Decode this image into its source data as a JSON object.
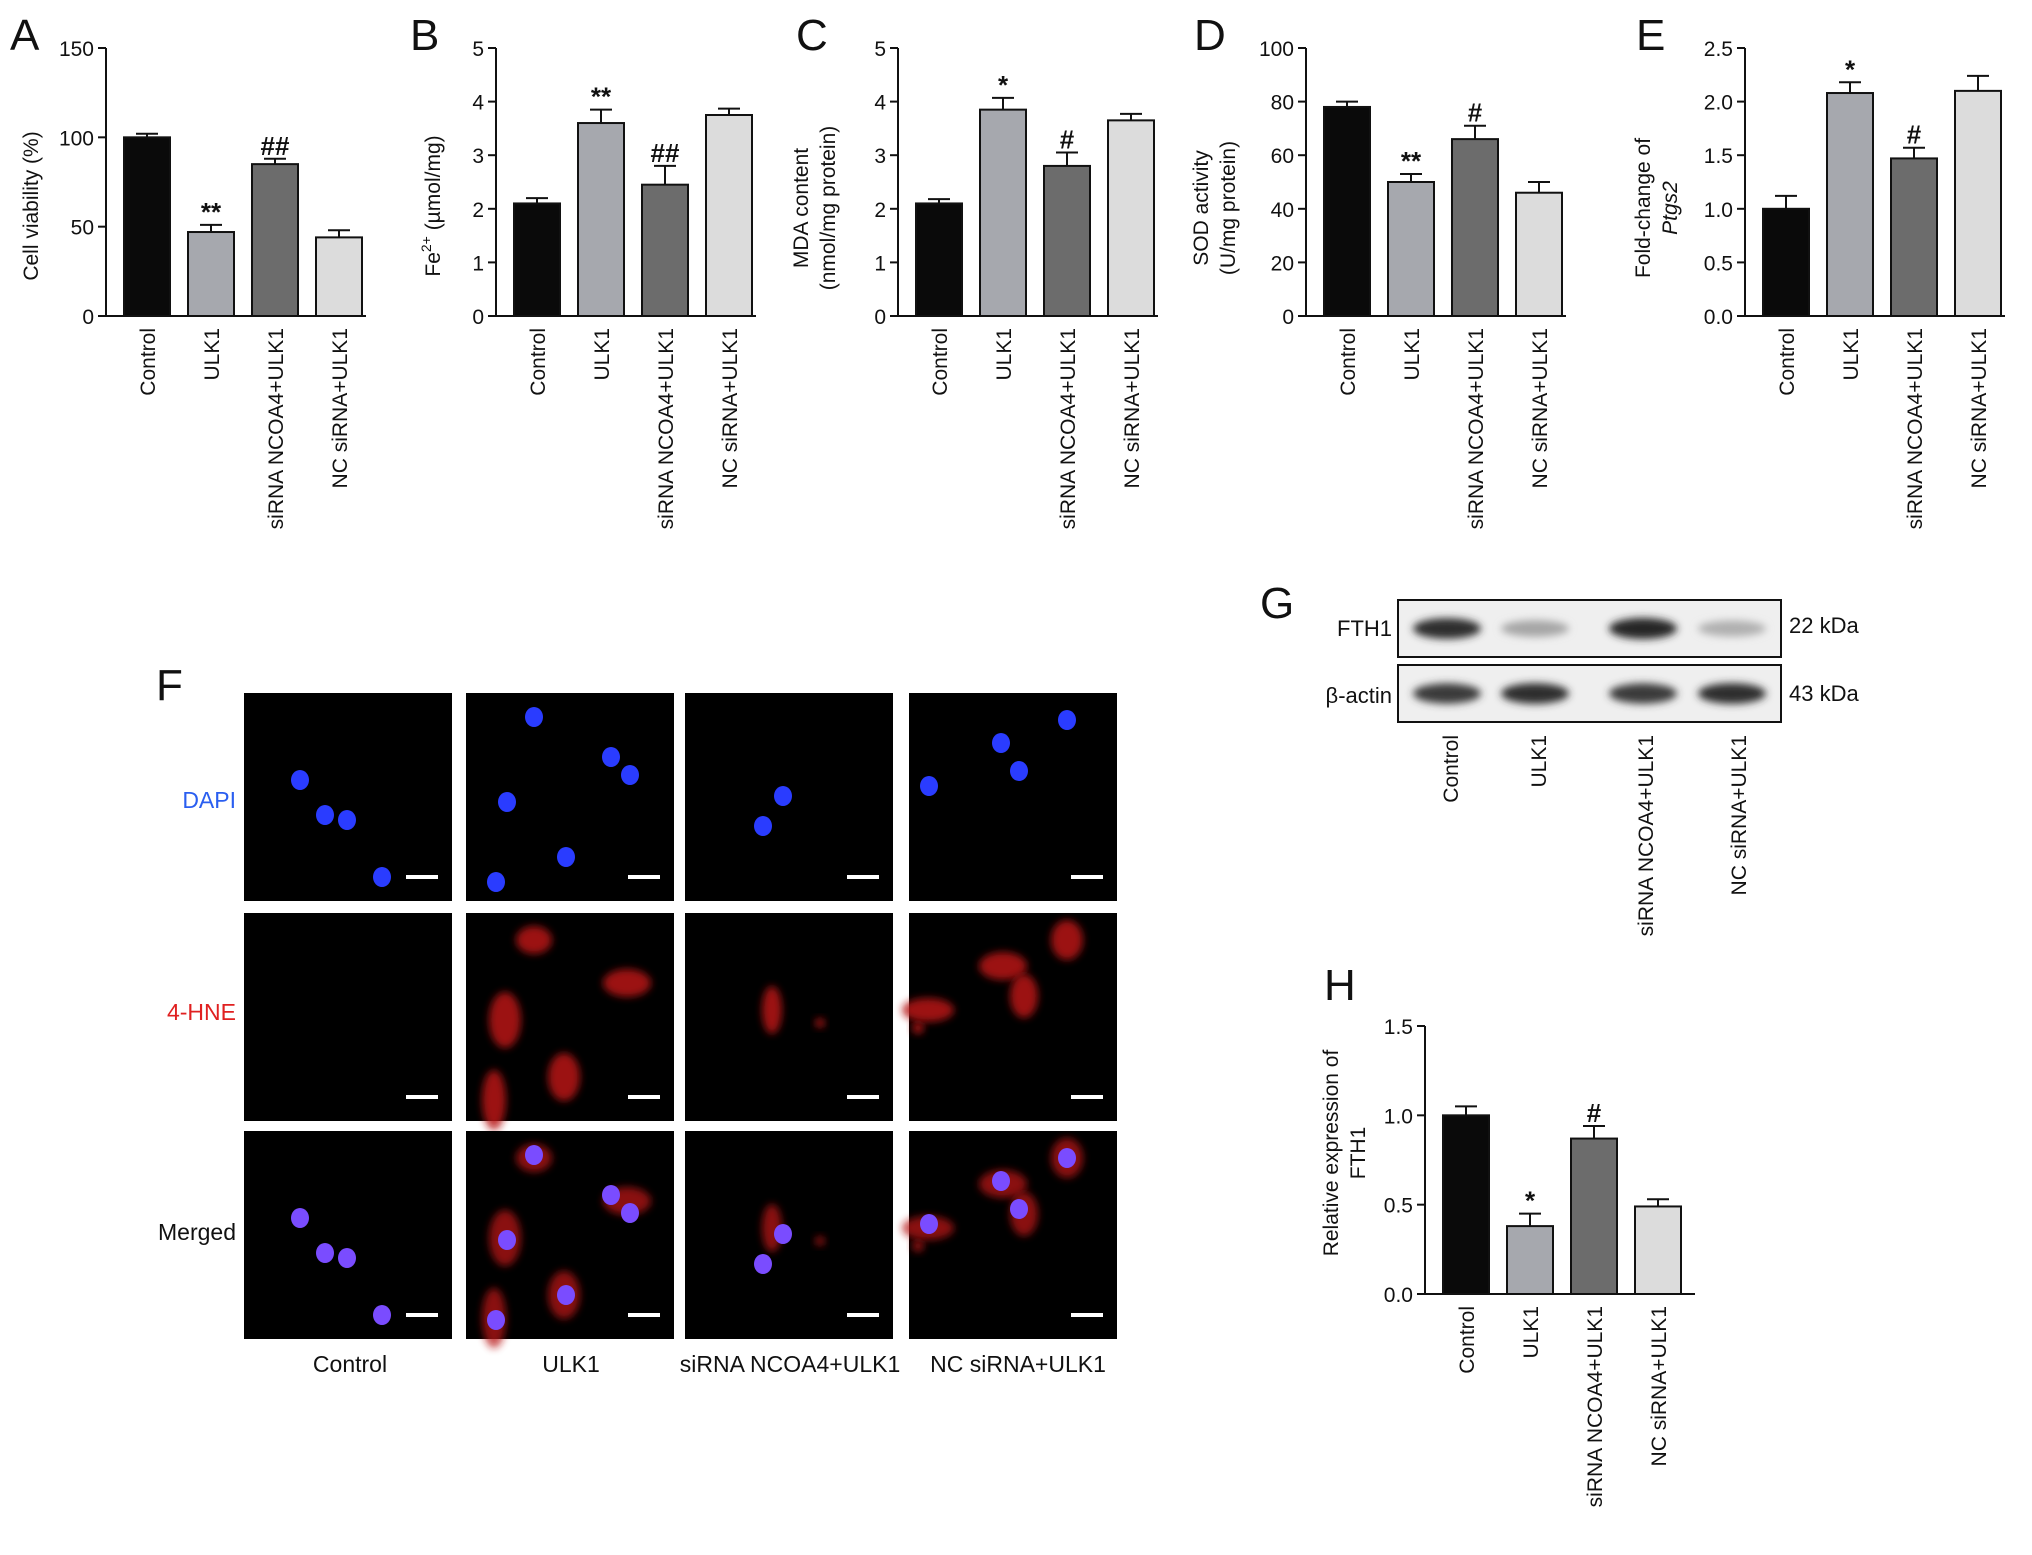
{
  "panel_labels": {
    "A": "A",
    "B": "B",
    "C": "C",
    "D": "D",
    "E": "E",
    "F": "F",
    "G": "G",
    "H": "H"
  },
  "bar_colors": [
    "#0a0a0a",
    "#a6a8ae",
    "#6c6c6c",
    "#dcdcdc"
  ],
  "chart_data": [
    {
      "panel": "A",
      "type": "bar",
      "categories": [
        "Control",
        "ULK1",
        "siRNA NCOA4+ULK1",
        "NC siRNA+ULK1"
      ],
      "values": [
        100,
        47,
        85,
        44
      ],
      "errors": [
        2,
        4,
        3,
        4
      ],
      "significance": [
        "",
        "**",
        "##",
        ""
      ],
      "ylabel": "Cell viability (%)",
      "ylim": [
        0,
        150
      ],
      "yticks": [
        0,
        50,
        100,
        150
      ],
      "ytick_labels": [
        "0",
        "50",
        "100",
        "150"
      ],
      "xlabel": "",
      "title": ""
    },
    {
      "panel": "B",
      "type": "bar",
      "categories": [
        "Control",
        "ULK1",
        "siRNA NCOA4+ULK1",
        "NC siRNA+ULK1"
      ],
      "values": [
        2.1,
        3.6,
        2.45,
        3.75
      ],
      "errors": [
        0.1,
        0.25,
        0.35,
        0.12
      ],
      "significance": [
        "",
        "**",
        "##",
        ""
      ],
      "ylabel": "Fe2+ (µmol/mg)",
      "ylim": [
        0,
        5
      ],
      "yticks": [
        0,
        1,
        2,
        3,
        4,
        5
      ],
      "ytick_labels": [
        "0",
        "1",
        "2",
        "3",
        "4",
        "5"
      ],
      "xlabel": "",
      "title": ""
    },
    {
      "panel": "C",
      "type": "bar",
      "categories": [
        "Control",
        "ULK1",
        "siRNA NCOA4+ULK1",
        "NC siRNA+ULK1"
      ],
      "values": [
        2.1,
        3.85,
        2.8,
        3.65
      ],
      "errors": [
        0.08,
        0.22,
        0.25,
        0.12
      ],
      "significance": [
        "",
        "*",
        "#",
        ""
      ],
      "ylabel": "MDA content (nmol/mg protein)",
      "ylim": [
        0,
        5
      ],
      "yticks": [
        0,
        1,
        2,
        3,
        4,
        5
      ],
      "ytick_labels": [
        "0",
        "1",
        "2",
        "3",
        "4",
        "5"
      ],
      "xlabel": "",
      "title": ""
    },
    {
      "panel": "D",
      "type": "bar",
      "categories": [
        "Control",
        "ULK1",
        "siRNA NCOA4+ULK1",
        "NC siRNA+ULK1"
      ],
      "values": [
        78,
        50,
        66,
        46
      ],
      "errors": [
        2,
        3,
        5,
        4
      ],
      "significance": [
        "",
        "**",
        "#",
        ""
      ],
      "ylabel": "SOD activity (U/mg protein)",
      "ylim": [
        0,
        100
      ],
      "yticks": [
        0,
        20,
        40,
        60,
        80,
        100
      ],
      "ytick_labels": [
        "0",
        "20",
        "40",
        "60",
        "80",
        "100"
      ],
      "xlabel": "",
      "title": ""
    },
    {
      "panel": "E",
      "type": "bar",
      "categories": [
        "Control",
        "ULK1",
        "siRNA NCOA4+ULK1",
        "NC siRNA+ULK1"
      ],
      "values": [
        1.0,
        2.08,
        1.47,
        2.1
      ],
      "errors": [
        0.12,
        0.1,
        0.1,
        0.14
      ],
      "significance": [
        "",
        "*",
        "#",
        ""
      ],
      "ylabel": "Fold-change of Ptgs2",
      "ylim": [
        0,
        2.5
      ],
      "yticks": [
        0,
        0.5,
        1.0,
        1.5,
        2.0,
        2.5
      ],
      "ytick_labels": [
        "0.0",
        "0.5",
        "1.0",
        "1.5",
        "2.0",
        "2.5"
      ],
      "xlabel": "",
      "title": ""
    },
    {
      "panel": "H",
      "type": "bar",
      "categories": [
        "Control",
        "ULK1",
        "siRNA NCOA4+ULK1",
        "NC siRNA+ULK1"
      ],
      "values": [
        1.0,
        0.38,
        0.87,
        0.49
      ],
      "errors": [
        0.05,
        0.07,
        0.07,
        0.04
      ],
      "significance": [
        "",
        "*",
        "#",
        ""
      ],
      "ylabel": "Relative expression of FTH1",
      "ylim": [
        0,
        1.5
      ],
      "yticks": [
        0,
        0.5,
        1.0,
        1.5
      ],
      "ytick_labels": [
        "0.0",
        "0.5",
        "1.0",
        "1.5"
      ],
      "xlabel": "",
      "title": ""
    }
  ],
  "axis_labels": {
    "A": {
      "line1": "Cell viability (%)"
    },
    "B": {
      "prefix": "Fe",
      "sup": "2+",
      "suffix": " (µmol/mg)"
    },
    "C": {
      "line1": "MDA content",
      "line2": "(nmol/mg protein)"
    },
    "D": {
      "line1": "SOD activity",
      "line2": "(U/mg protein)"
    },
    "E": {
      "line1": "Fold-change of",
      "line2": "Ptgs2"
    },
    "H": {
      "line1": "Relative expression of",
      "line2": "FTH1"
    }
  },
  "microscopy": {
    "rows": [
      "DAPI",
      "4-HNE",
      "Merged"
    ],
    "row_colors": [
      "#2a5ef0",
      "#e02020",
      "#111111"
    ],
    "columns": [
      "Control",
      "ULK1",
      "siRNA NCOA4+ULK1",
      "NC siRNA+ULK1"
    ]
  },
  "western_blot": {
    "bands": [
      {
        "protein": "FTH1",
        "size": "22 kDa",
        "intensity": [
          0.85,
          0.3,
          0.9,
          0.25
        ]
      },
      {
        "protein": "β-actin",
        "size": "43 kDa",
        "intensity": [
          0.8,
          0.85,
          0.8,
          0.85
        ]
      }
    ],
    "lanes": [
      "Control",
      "ULK1",
      "siRNA NCOA4+ULK1",
      "NC siRNA+ULK1"
    ]
  }
}
